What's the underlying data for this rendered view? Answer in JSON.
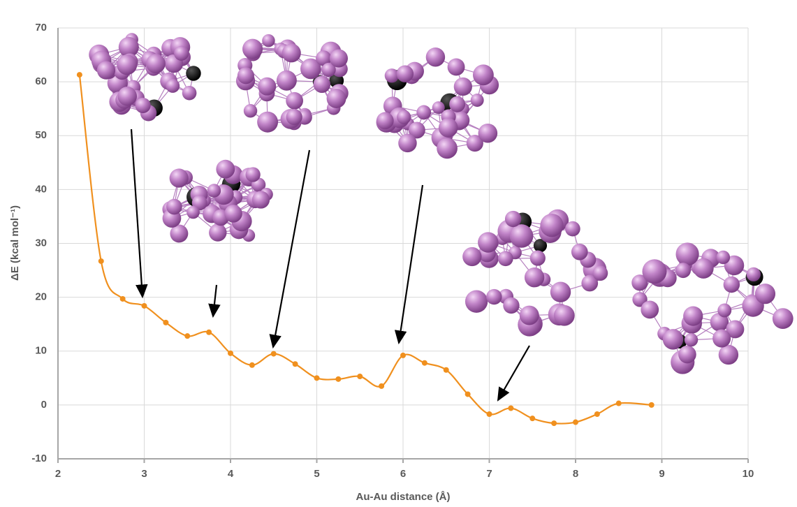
{
  "chart_data": {
    "type": "line",
    "x_label": "Au-Au distance (Å)",
    "y_label": "ΔE (kcal mol⁻¹)",
    "x": [
      2.25,
      2.5,
      2.75,
      3.0,
      3.25,
      3.5,
      3.75,
      4.0,
      4.25,
      4.5,
      4.75,
      5.0,
      5.25,
      5.5,
      5.75,
      6.0,
      6.25,
      6.5,
      6.75,
      7.0,
      7.25,
      7.5,
      7.75,
      8.0,
      8.25,
      8.5,
      8.88
    ],
    "series": [
      {
        "color": "#f0901e",
        "values": [
          61.3,
          26.7,
          19.7,
          18.4,
          15.3,
          12.8,
          13.5,
          9.6,
          7.4,
          9.5,
          7.6,
          5.0,
          4.8,
          5.3,
          3.5,
          9.2,
          7.8,
          6.5,
          2.0,
          -1.7,
          -0.6,
          -2.5,
          -3.4,
          -3.2,
          -1.7,
          0.3,
          0.0
        ]
      }
    ],
    "xlim": [
      2,
      10
    ],
    "xticks": [
      2,
      3,
      4,
      5,
      6,
      7,
      8,
      9,
      10
    ],
    "ylim": [
      -10,
      70
    ],
    "yticks": [
      -10,
      0,
      10,
      20,
      30,
      40,
      50,
      60,
      70
    ],
    "grid": true
  }
}
